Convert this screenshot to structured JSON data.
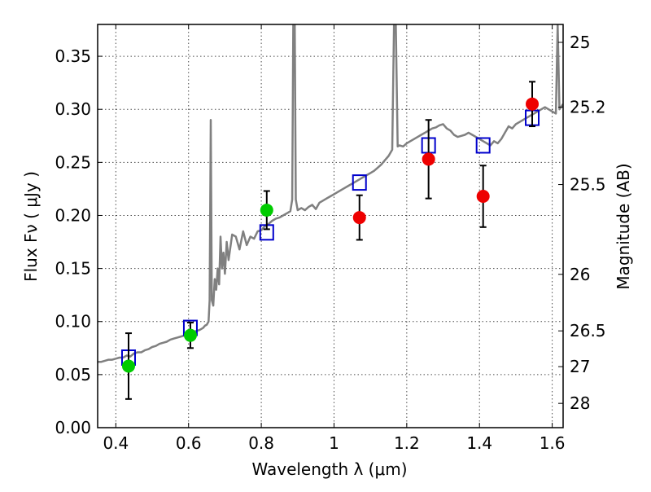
{
  "chart_data": {
    "type": "scatter",
    "xlabel": "Wavelength  λ (μm)",
    "ylabel": "Flux  Fν  ( μJy )",
    "ylabel_right": "Magnitude (AB)",
    "xlim": [
      0.35,
      1.63
    ],
    "ylim": [
      0.0,
      0.38
    ],
    "grid": true,
    "x_ticks": [
      0.4,
      0.6,
      0.8,
      1.0,
      1.2,
      1.4,
      1.6
    ],
    "x_tick_labels": [
      "0.4",
      "0.6",
      "0.8",
      "1",
      "1.2",
      "1.4",
      "1.6"
    ],
    "y_ticks": [
      0.0,
      0.05,
      0.1,
      0.15,
      0.2,
      0.25,
      0.3,
      0.35
    ],
    "y_tick_labels": [
      "0.00",
      "0.05",
      "0.10",
      "0.15",
      "0.20",
      "0.25",
      "0.30",
      "0.35"
    ],
    "mag_ticks": [
      {
        "label": "25",
        "flux": 0.3631
      },
      {
        "label": "25.2",
        "flux": 0.302
      },
      {
        "label": "25.5",
        "flux": 0.2291
      },
      {
        "label": "26",
        "flux": 0.1445
      },
      {
        "label": "26.5",
        "flux": 0.0912
      },
      {
        "label": "27",
        "flux": 0.0575
      },
      {
        "label": "28",
        "flux": 0.0229
      }
    ],
    "colors": {
      "model": "#808080",
      "optical_points": "#00cc00",
      "nir_points": "#ee0000",
      "model_squares": "#0000cc",
      "error_bars": "#000000"
    },
    "series": [
      {
        "type": "line",
        "color": "#808080",
        "points": [
          [
            0.35,
            0.062
          ],
          [
            0.36,
            0.062
          ],
          [
            0.37,
            0.063
          ],
          [
            0.38,
            0.064
          ],
          [
            0.39,
            0.064
          ],
          [
            0.4,
            0.065
          ],
          [
            0.41,
            0.066
          ],
          [
            0.42,
            0.066
          ],
          [
            0.43,
            0.068
          ],
          [
            0.44,
            0.067
          ],
          [
            0.45,
            0.07
          ],
          [
            0.46,
            0.071
          ],
          [
            0.47,
            0.071
          ],
          [
            0.48,
            0.073
          ],
          [
            0.49,
            0.074
          ],
          [
            0.5,
            0.076
          ],
          [
            0.51,
            0.077
          ],
          [
            0.52,
            0.079
          ],
          [
            0.53,
            0.08
          ],
          [
            0.54,
            0.081
          ],
          [
            0.55,
            0.083
          ],
          [
            0.56,
            0.084
          ],
          [
            0.57,
            0.085
          ],
          [
            0.58,
            0.086
          ],
          [
            0.59,
            0.087
          ],
          [
            0.6,
            0.088
          ],
          [
            0.61,
            0.09
          ],
          [
            0.62,
            0.091
          ],
          [
            0.63,
            0.092
          ],
          [
            0.64,
            0.094
          ],
          [
            0.645,
            0.096
          ],
          [
            0.65,
            0.097
          ],
          [
            0.655,
            0.1
          ],
          [
            0.658,
            0.12
          ],
          [
            0.661,
            0.29
          ],
          [
            0.664,
            0.12
          ],
          [
            0.668,
            0.115
          ],
          [
            0.672,
            0.14
          ],
          [
            0.676,
            0.13
          ],
          [
            0.68,
            0.15
          ],
          [
            0.684,
            0.135
          ],
          [
            0.688,
            0.18
          ],
          [
            0.692,
            0.15
          ],
          [
            0.696,
            0.165
          ],
          [
            0.7,
            0.145
          ],
          [
            0.705,
            0.175
          ],
          [
            0.71,
            0.158
          ],
          [
            0.72,
            0.182
          ],
          [
            0.73,
            0.18
          ],
          [
            0.74,
            0.168
          ],
          [
            0.75,
            0.185
          ],
          [
            0.76,
            0.172
          ],
          [
            0.77,
            0.18
          ],
          [
            0.78,
            0.178
          ],
          [
            0.79,
            0.185
          ],
          [
            0.8,
            0.186
          ],
          [
            0.81,
            0.19
          ],
          [
            0.82,
            0.192
          ],
          [
            0.83,
            0.195
          ],
          [
            0.84,
            0.197
          ],
          [
            0.85,
            0.198
          ],
          [
            0.86,
            0.2
          ],
          [
            0.87,
            0.202
          ],
          [
            0.88,
            0.204
          ],
          [
            0.885,
            0.215
          ],
          [
            0.888,
            0.38
          ],
          [
            0.892,
            0.38
          ],
          [
            0.895,
            0.215
          ],
          [
            0.9,
            0.205
          ],
          [
            0.91,
            0.207
          ],
          [
            0.92,
            0.205
          ],
          [
            0.93,
            0.208
          ],
          [
            0.94,
            0.21
          ],
          [
            0.95,
            0.206
          ],
          [
            0.96,
            0.212
          ],
          [
            0.97,
            0.214
          ],
          [
            0.98,
            0.216
          ],
          [
            0.99,
            0.218
          ],
          [
            1.0,
            0.22
          ],
          [
            1.01,
            0.222
          ],
          [
            1.02,
            0.224
          ],
          [
            1.03,
            0.226
          ],
          [
            1.04,
            0.228
          ],
          [
            1.05,
            0.23
          ],
          [
            1.06,
            0.232
          ],
          [
            1.07,
            0.234
          ],
          [
            1.08,
            0.236
          ],
          [
            1.09,
            0.238
          ],
          [
            1.1,
            0.24
          ],
          [
            1.11,
            0.242
          ],
          [
            1.12,
            0.245
          ],
          [
            1.13,
            0.248
          ],
          [
            1.14,
            0.252
          ],
          [
            1.15,
            0.256
          ],
          [
            1.16,
            0.262
          ],
          [
            1.165,
            0.38
          ],
          [
            1.17,
            0.38
          ],
          [
            1.175,
            0.265
          ],
          [
            1.18,
            0.266
          ],
          [
            1.19,
            0.265
          ],
          [
            1.2,
            0.268
          ],
          [
            1.21,
            0.27
          ],
          [
            1.22,
            0.272
          ],
          [
            1.23,
            0.274
          ],
          [
            1.24,
            0.276
          ],
          [
            1.25,
            0.278
          ],
          [
            1.26,
            0.28
          ],
          [
            1.27,
            0.282
          ],
          [
            1.28,
            0.283
          ],
          [
            1.29,
            0.285
          ],
          [
            1.3,
            0.286
          ],
          [
            1.31,
            0.282
          ],
          [
            1.32,
            0.28
          ],
          [
            1.33,
            0.276
          ],
          [
            1.34,
            0.274
          ],
          [
            1.35,
            0.275
          ],
          [
            1.36,
            0.276
          ],
          [
            1.37,
            0.278
          ],
          [
            1.38,
            0.276
          ],
          [
            1.39,
            0.274
          ],
          [
            1.4,
            0.272
          ],
          [
            1.41,
            0.27
          ],
          [
            1.42,
            0.268
          ],
          [
            1.43,
            0.266
          ],
          [
            1.44,
            0.27
          ],
          [
            1.45,
            0.268
          ],
          [
            1.46,
            0.272
          ],
          [
            1.47,
            0.278
          ],
          [
            1.48,
            0.284
          ],
          [
            1.49,
            0.282
          ],
          [
            1.5,
            0.286
          ],
          [
            1.51,
            0.288
          ],
          [
            1.52,
            0.29
          ],
          [
            1.53,
            0.292
          ],
          [
            1.54,
            0.294
          ],
          [
            1.55,
            0.296
          ],
          [
            1.56,
            0.298
          ],
          [
            1.57,
            0.3
          ],
          [
            1.58,
            0.302
          ],
          [
            1.59,
            0.3
          ],
          [
            1.6,
            0.298
          ],
          [
            1.61,
            0.296
          ],
          [
            1.615,
            0.38
          ],
          [
            1.62,
            0.3
          ],
          [
            1.63,
            0.305
          ]
        ]
      },
      {
        "type": "markers",
        "marker": "square",
        "color": "#0000cc",
        "points": [
          [
            0.435,
            0.066
          ],
          [
            0.605,
            0.094
          ],
          [
            0.815,
            0.184
          ],
          [
            1.07,
            0.231
          ],
          [
            1.26,
            0.266
          ],
          [
            1.41,
            0.266
          ],
          [
            1.545,
            0.292
          ]
        ]
      },
      {
        "type": "markers",
        "marker": "circle",
        "color": "#00cc00",
        "points": [
          {
            "x": 0.435,
            "y": 0.058,
            "err": 0.031
          },
          {
            "x": 0.605,
            "y": 0.087,
            "err": 0.012
          },
          {
            "x": 0.815,
            "y": 0.205,
            "err": 0.018
          }
        ]
      },
      {
        "type": "markers",
        "marker": "circle",
        "color": "#ee0000",
        "points": [
          {
            "x": 1.07,
            "y": 0.198,
            "err": 0.021
          },
          {
            "x": 1.26,
            "y": 0.253,
            "err": 0.037
          },
          {
            "x": 1.41,
            "y": 0.218,
            "err": 0.029
          },
          {
            "x": 1.545,
            "y": 0.305,
            "err": 0.021
          }
        ]
      }
    ]
  }
}
